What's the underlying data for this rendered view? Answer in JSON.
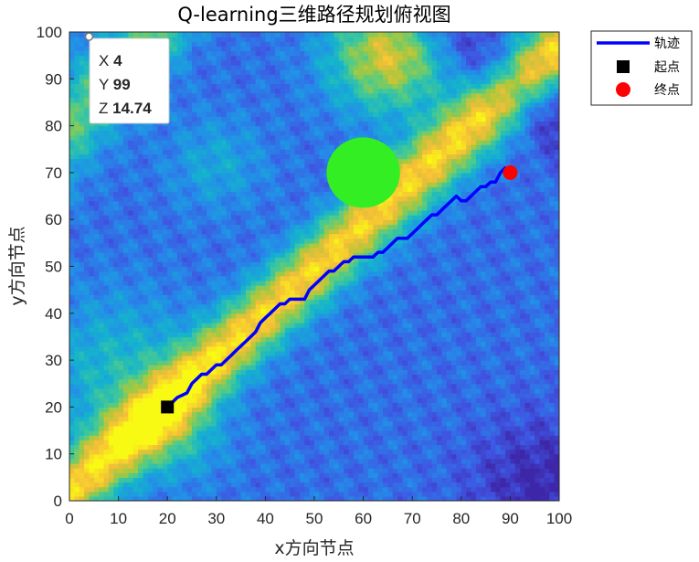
{
  "chart_data": {
    "type": "heatmap",
    "title": "Q-learning三维路径规划俯视图",
    "xlabel": "x方向节点",
    "ylabel": "y方向节点",
    "xlim": [
      0,
      100
    ],
    "ylim": [
      0,
      100
    ],
    "xticks": [
      "0",
      "10",
      "20",
      "30",
      "40",
      "50",
      "60",
      "70",
      "80",
      "90",
      "100"
    ],
    "yticks": [
      "0",
      "10",
      "20",
      "30",
      "40",
      "50",
      "60",
      "70",
      "80",
      "90",
      "100"
    ],
    "colormap": "parula",
    "grid": false,
    "legend": {
      "placement": "outside-top-right",
      "entries": [
        {
          "label": "轨迹",
          "marker": "line",
          "color": "#0000ff"
        },
        {
          "label": "起点",
          "marker": "square",
          "color": "#000000"
        },
        {
          "label": "终点",
          "marker": "circle",
          "color": "#ff0000"
        }
      ]
    },
    "start": {
      "x": 20,
      "y": 20
    },
    "goal": {
      "x": 90,
      "y": 70
    },
    "obstacle": {
      "x": 60,
      "y": 70,
      "r": 7.5,
      "color": "#33ee22"
    },
    "trajectory": {
      "color": "#0000ff",
      "x": [
        20,
        21,
        22,
        24,
        25,
        26,
        27,
        28,
        29,
        30,
        31,
        32,
        33,
        34,
        35,
        36,
        37,
        38,
        39,
        40,
        41,
        42,
        43,
        44,
        45,
        46,
        47,
        48,
        49,
        50,
        51,
        52,
        53,
        54,
        55,
        56,
        57,
        58,
        59,
        60,
        61,
        62,
        63,
        64,
        65,
        66,
        67,
        68,
        69,
        70,
        71,
        72,
        73,
        74,
        75,
        76,
        77,
        78,
        79,
        80,
        81,
        82,
        83,
        84,
        85,
        86,
        87,
        88,
        89,
        90
      ],
      "y": [
        20,
        21,
        22,
        23,
        25,
        26,
        27,
        27,
        28,
        29,
        29,
        30,
        31,
        32,
        33,
        34,
        35,
        36,
        38,
        39,
        40,
        41,
        42,
        42,
        43,
        43,
        43,
        43,
        45,
        46,
        47,
        48,
        49,
        49,
        50,
        51,
        51,
        52,
        52,
        52,
        52,
        52,
        53,
        53,
        54,
        55,
        56,
        56,
        56,
        57,
        58,
        59,
        60,
        61,
        61,
        62,
        63,
        64,
        65,
        64,
        64,
        65,
        66,
        67,
        67,
        68,
        68,
        70,
        71,
        70
      ]
    },
    "datatip": {
      "x_label": "X",
      "x_value": "4",
      "y_label": "Y",
      "y_value": "99",
      "z_label": "Z",
      "z_value": "14.74",
      "x": 4,
      "y": 99
    }
  }
}
